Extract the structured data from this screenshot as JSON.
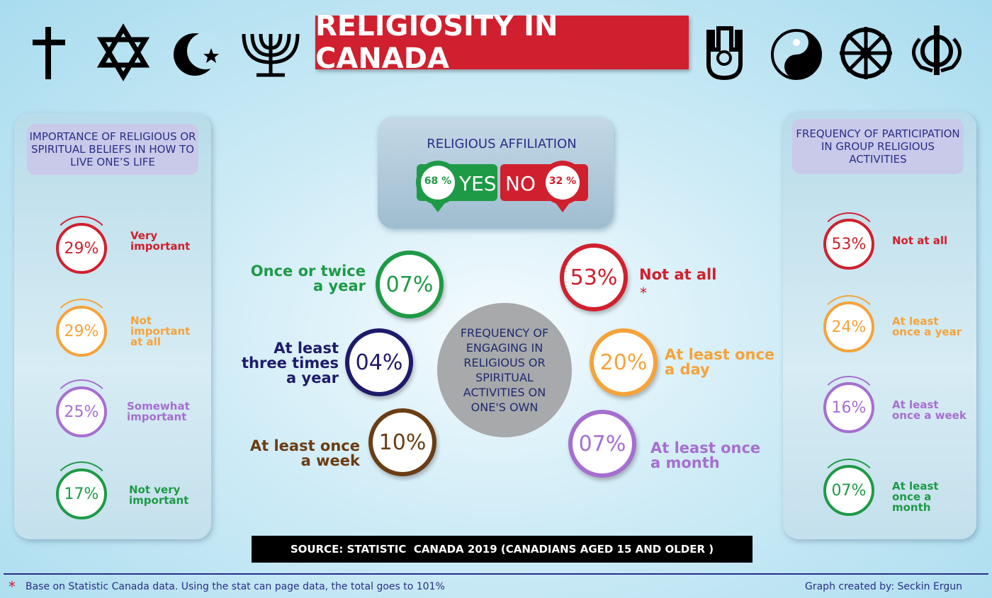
{
  "header": {
    "title": "RELIGIOSITY IN CANADA"
  },
  "left_panel": {
    "title": "IMPORTANCE OF RELIGIOUS OR SPIRITUAL BELIEFS IN HOW TO LIVE ONE’S LIFE",
    "items": [
      {
        "value": "29%",
        "label": "Very important"
      },
      {
        "value": "29%",
        "label": "Not important at all"
      },
      {
        "value": "25%",
        "label": "Somewhat important"
      },
      {
        "value": "17%",
        "label": "Not very important"
      }
    ]
  },
  "affiliation": {
    "title": "RELIGIOUS AFFILIATION",
    "yes_value": "68 %",
    "yes_label": "YES",
    "no_label": "NO",
    "no_value": "32 %"
  },
  "center": {
    "title": "FREQUENCY OF ENGAGING IN RELIGIOUS OR SPIRITUAL ACTIVITIES ON ONE'S OWN",
    "items": [
      {
        "value": "07%",
        "label": "Once or twice a year"
      },
      {
        "value": "04%",
        "label": "At least three times a year"
      },
      {
        "value": "10%",
        "label": "At least once a week"
      },
      {
        "value": "53%",
        "label": "Not at all"
      },
      {
        "value": "20%",
        "label": "At least once a day"
      },
      {
        "value": "07%",
        "label": "At least once a month"
      }
    ],
    "asterisk": "*"
  },
  "right_panel": {
    "title": "FREQUENCY OF PARTICIPATION IN GROUP RELIGIOUS ACTIVITIES",
    "items": [
      {
        "value": "53%",
        "label": "Not at all"
      },
      {
        "value": "24%",
        "label": "At least once a year"
      },
      {
        "value": "16%",
        "label": "At least once a week"
      },
      {
        "value": "07%",
        "label": "At least once a month"
      }
    ]
  },
  "source": "SOURCE: STATISTIC  CANADA 2019 (CANADIANS AGED 15 AND OLDER )",
  "footnote": {
    "marker": "*",
    "text": "Base on Statistic Canada data. Using the stat can page data, the total goes to 101%"
  },
  "credit": "Graph created by: Seckin Ergun"
}
